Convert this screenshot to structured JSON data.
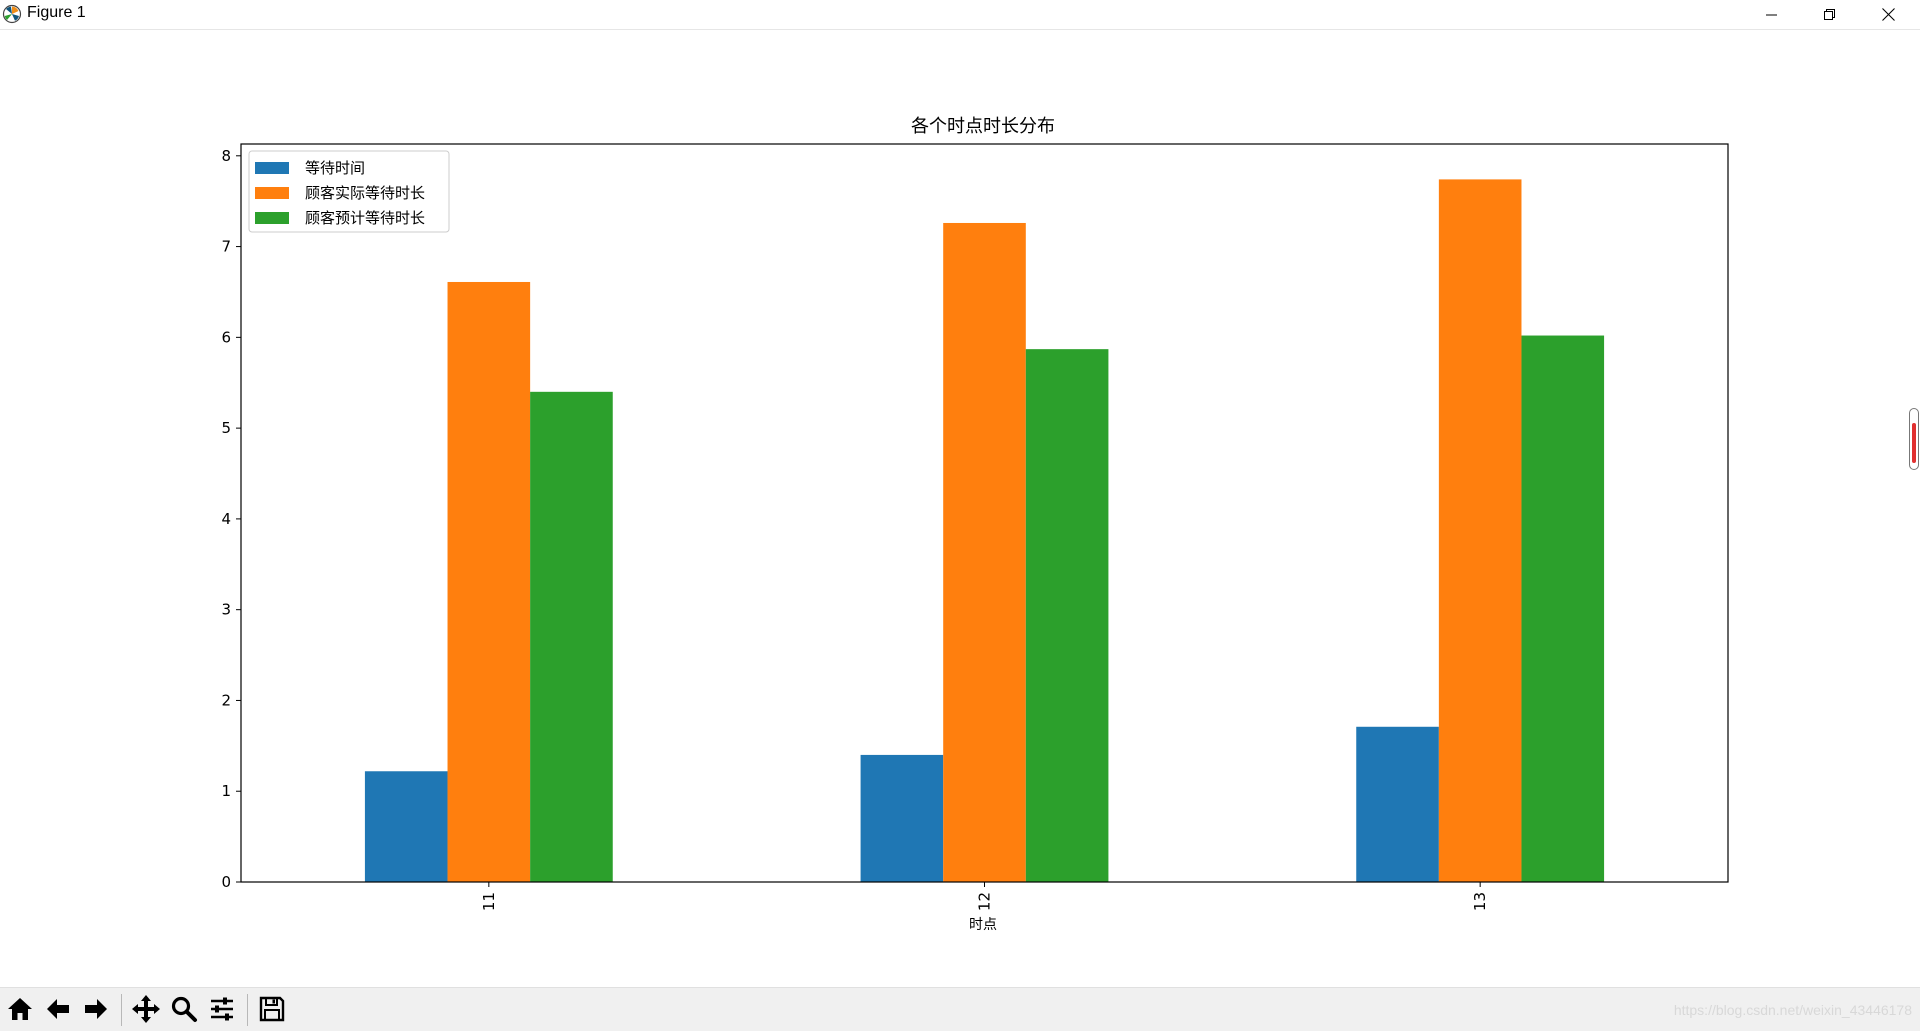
{
  "window": {
    "title": "Figure 1",
    "icons": [
      "matplotlib-logo-icon",
      "minimize-icon",
      "restore-icon",
      "close-icon"
    ]
  },
  "toolbar": {
    "buttons": [
      "home-icon",
      "back-icon",
      "forward-icon",
      "pan-icon",
      "zoom-icon",
      "configure-subplots-icon",
      "save-icon"
    ]
  },
  "watermark": "https://blog.csdn.net/weixin_43446178",
  "chart_data": {
    "type": "bar",
    "title": "各个时点时长分布",
    "xlabel": "时点",
    "ylabel": "",
    "categories": [
      "11",
      "12",
      "13"
    ],
    "yticks": [
      "0",
      "1",
      "2",
      "3",
      "4",
      "5",
      "6",
      "7",
      "8"
    ],
    "ylim": [
      0,
      8.13
    ],
    "legend_position": "upper-left",
    "grid": false,
    "series": [
      {
        "name": "等待时间",
        "color": "#1f77b4",
        "values": [
          1.22,
          1.4,
          1.71
        ]
      },
      {
        "name": "顾客实际等待时长",
        "color": "#ff7f0e",
        "values": [
          6.61,
          7.26,
          7.74
        ]
      },
      {
        "name": "顾客预计等待时长",
        "color": "#2ca02c",
        "values": [
          5.4,
          5.87,
          6.02
        ]
      }
    ]
  }
}
